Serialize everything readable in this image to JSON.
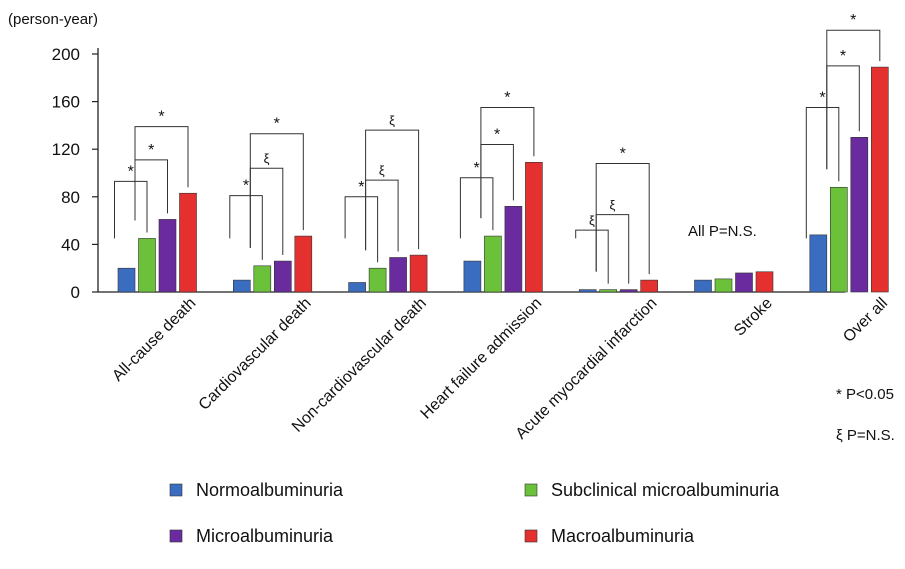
{
  "chart_data": {
    "type": "bar",
    "ylabel": "(person-year)",
    "ylim": [
      0,
      200
    ],
    "yticks": [
      0,
      40,
      80,
      120,
      160,
      200
    ],
    "categories": [
      "All-cause death",
      "Cardiovascular death",
      "Non-cardiovascular death",
      "Heart failure admission",
      "Acute myocardial infarction",
      "Stroke",
      "Over all"
    ],
    "series": [
      {
        "name": "Normoalbuminuria",
        "color": "#3a6cc0",
        "values": [
          20,
          10,
          8,
          26,
          2,
          10,
          48
        ]
      },
      {
        "name": "Subclinical microalbuminuria",
        "color": "#6cc13a",
        "values": [
          45,
          22,
          20,
          47,
          2,
          11,
          88
        ]
      },
      {
        "name": "Microalbuminuria",
        "color": "#6a2b9e",
        "values": [
          61,
          26,
          29,
          72,
          2,
          16,
          130
        ]
      },
      {
        "name": "Macroalbuminuria",
        "color": "#e53030",
        "values": [
          83,
          47,
          31,
          109,
          10,
          17,
          189
        ]
      }
    ],
    "annotations": {
      "stroke_note": "All P=N.S.",
      "sig_label": "* P<0.05",
      "ns_label": "ξ P=N.S.",
      "comparisons": [
        {
          "category": 0,
          "from": 0,
          "to": 1,
          "level": 93,
          "symbol": "*"
        },
        {
          "category": 0,
          "from": 1,
          "to": 2,
          "level": 111,
          "symbol": "*"
        },
        {
          "category": 0,
          "from": 1,
          "to": 3,
          "level": 139,
          "symbol": "*"
        },
        {
          "category": 1,
          "from": 0,
          "to": 1,
          "level": 81,
          "symbol": "*"
        },
        {
          "category": 1,
          "from": 1,
          "to": 2,
          "level": 104,
          "symbol": "ξ"
        },
        {
          "category": 1,
          "from": 1,
          "to": 3,
          "level": 133,
          "symbol": "*"
        },
        {
          "category": 2,
          "from": 0,
          "to": 1,
          "level": 80,
          "symbol": "*"
        },
        {
          "category": 2,
          "from": 1,
          "to": 2,
          "level": 94,
          "symbol": "ξ"
        },
        {
          "category": 2,
          "from": 1,
          "to": 3,
          "level": 136,
          "symbol": "ξ"
        },
        {
          "category": 3,
          "from": 0,
          "to": 1,
          "level": 96,
          "symbol": "*"
        },
        {
          "category": 3,
          "from": 1,
          "to": 2,
          "level": 124,
          "symbol": "*"
        },
        {
          "category": 3,
          "from": 1,
          "to": 3,
          "level": 155,
          "symbol": "*"
        },
        {
          "category": 4,
          "from": 0,
          "to": 1,
          "level": 52,
          "symbol": "ξ"
        },
        {
          "category": 4,
          "from": 1,
          "to": 2,
          "level": 65,
          "symbol": "ξ"
        },
        {
          "category": 4,
          "from": 1,
          "to": 3,
          "level": 108,
          "symbol": "*"
        },
        {
          "category": 6,
          "from": 0,
          "to": 1,
          "level": 155,
          "symbol": "*"
        },
        {
          "category": 6,
          "from": 1,
          "to": 2,
          "level": 190,
          "symbol": "*"
        },
        {
          "category": 6,
          "from": 1,
          "to": 3,
          "level": 220,
          "symbol": "*"
        }
      ]
    }
  }
}
